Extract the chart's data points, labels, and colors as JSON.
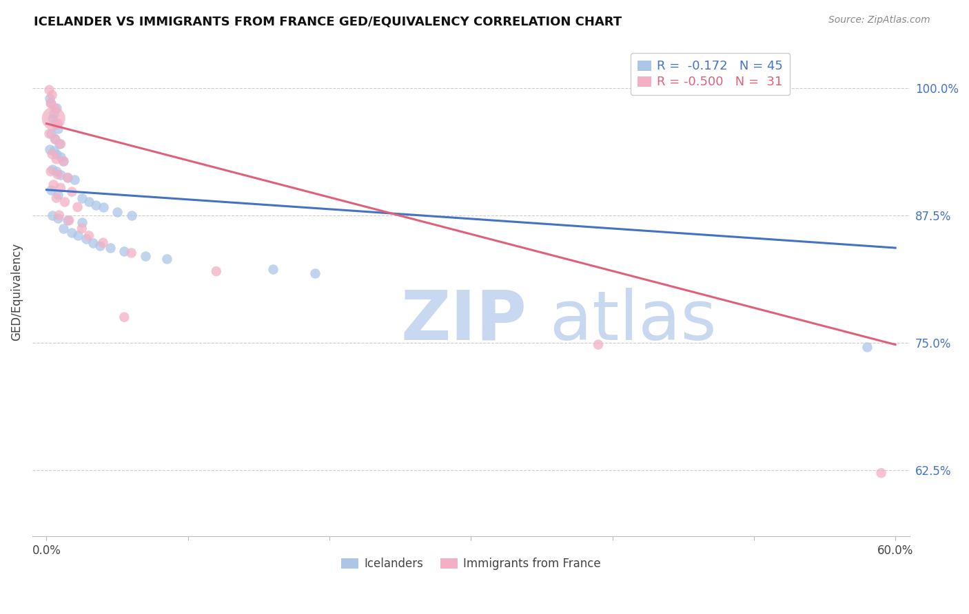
{
  "title": "ICELANDER VS IMMIGRANTS FROM FRANCE GED/EQUIVALENCY CORRELATION CHART",
  "source": "Source: ZipAtlas.com",
  "ylabel": "GED/Equivalency",
  "ytick_labels": [
    "100.0%",
    "87.5%",
    "75.0%",
    "62.5%"
  ],
  "ytick_values": [
    1.0,
    0.875,
    0.75,
    0.625
  ],
  "legend_blue_R": "-0.172",
  "legend_blue_N": "45",
  "legend_pink_R": "-0.500",
  "legend_pink_N": "31",
  "blue_color": "#adc6e8",
  "pink_color": "#f4afc4",
  "blue_line_color": "#4472c4",
  "pink_line_color": "#e0607a",
  "watermark_zip": "ZIP",
  "watermark_atlas": "atlas",
  "blue_scatter": [
    [
      0.002,
      0.99
    ],
    [
      0.003,
      0.985
    ],
    [
      0.005,
      0.975
    ],
    [
      0.007,
      0.98
    ],
    [
      0.004,
      0.97
    ],
    [
      0.006,
      0.965
    ],
    [
      0.008,
      0.96
    ],
    [
      0.003,
      0.955
    ],
    [
      0.006,
      0.95
    ],
    [
      0.009,
      0.945
    ],
    [
      0.002,
      0.94
    ],
    [
      0.005,
      0.938
    ],
    [
      0.007,
      0.935
    ],
    [
      0.01,
      0.932
    ],
    [
      0.012,
      0.928
    ],
    [
      0.004,
      0.92
    ],
    [
      0.007,
      0.918
    ],
    [
      0.01,
      0.915
    ],
    [
      0.015,
      0.912
    ],
    [
      0.02,
      0.91
    ],
    [
      0.003,
      0.9
    ],
    [
      0.008,
      0.895
    ],
    [
      0.025,
      0.892
    ],
    [
      0.03,
      0.888
    ],
    [
      0.035,
      0.885
    ],
    [
      0.04,
      0.883
    ],
    [
      0.05,
      0.878
    ],
    [
      0.06,
      0.875
    ],
    [
      0.004,
      0.875
    ],
    [
      0.008,
      0.872
    ],
    [
      0.015,
      0.87
    ],
    [
      0.025,
      0.868
    ],
    [
      0.012,
      0.862
    ],
    [
      0.018,
      0.858
    ],
    [
      0.022,
      0.855
    ],
    [
      0.028,
      0.852
    ],
    [
      0.033,
      0.848
    ],
    [
      0.038,
      0.845
    ],
    [
      0.045,
      0.843
    ],
    [
      0.055,
      0.84
    ],
    [
      0.07,
      0.835
    ],
    [
      0.085,
      0.832
    ],
    [
      0.16,
      0.822
    ],
    [
      0.19,
      0.818
    ],
    [
      0.58,
      0.746
    ]
  ],
  "pink_scatter": [
    [
      0.002,
      0.998
    ],
    [
      0.004,
      0.993
    ],
    [
      0.003,
      0.985
    ],
    [
      0.006,
      0.98
    ],
    [
      0.005,
      0.97
    ],
    [
      0.008,
      0.965
    ],
    [
      0.002,
      0.955
    ],
    [
      0.006,
      0.95
    ],
    [
      0.01,
      0.945
    ],
    [
      0.004,
      0.935
    ],
    [
      0.007,
      0.93
    ],
    [
      0.012,
      0.928
    ],
    [
      0.003,
      0.918
    ],
    [
      0.008,
      0.915
    ],
    [
      0.015,
      0.912
    ],
    [
      0.005,
      0.905
    ],
    [
      0.01,
      0.902
    ],
    [
      0.018,
      0.898
    ],
    [
      0.007,
      0.892
    ],
    [
      0.013,
      0.888
    ],
    [
      0.022,
      0.883
    ],
    [
      0.009,
      0.875
    ],
    [
      0.016,
      0.87
    ],
    [
      0.025,
      0.862
    ],
    [
      0.03,
      0.855
    ],
    [
      0.04,
      0.848
    ],
    [
      0.06,
      0.838
    ],
    [
      0.12,
      0.82
    ],
    [
      0.055,
      0.775
    ],
    [
      0.39,
      0.748
    ],
    [
      0.59,
      0.622
    ]
  ],
  "pink_large_idx": 0,
  "xmin": -0.01,
  "xmax": 0.61,
  "ymin": 0.56,
  "ymax": 1.04,
  "blue_trend_x": [
    0.0,
    0.6
  ],
  "blue_trend_y": [
    0.9,
    0.843
  ],
  "pink_trend_x": [
    0.0,
    0.6
  ],
  "pink_trend_y": [
    0.965,
    0.748
  ],
  "xtick_positions": [
    0.0,
    0.1,
    0.2,
    0.3,
    0.4,
    0.5,
    0.6
  ],
  "xtick_show": [
    true,
    false,
    false,
    false,
    false,
    false,
    true
  ]
}
